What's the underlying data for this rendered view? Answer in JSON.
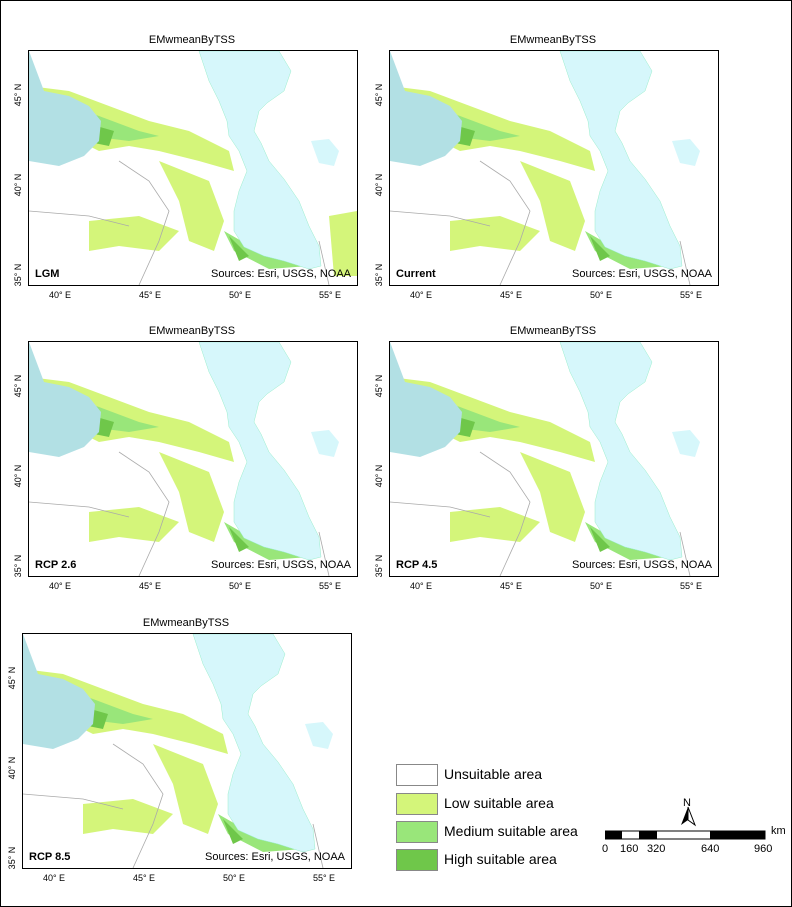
{
  "panels": [
    {
      "title": "EMwmeanByTSS",
      "scenario": "LGM",
      "source": "Sources: Esri, USGS, NOAA"
    },
    {
      "title": "EMwmeanByTSS",
      "scenario": "Current",
      "source": "Sources: Esri, USGS, NOAA"
    },
    {
      "title": "EMwmeanByTSS",
      "scenario": "RCP 2.6",
      "source": "Sources: Esri, USGS, NOAA"
    },
    {
      "title": "EMwmeanByTSS",
      "scenario": "RCP 4.5",
      "source": "Sources: Esri, USGS, NOAA"
    },
    {
      "title": "EMwmeanByTSS",
      "scenario": "RCP 8.5",
      "source": "Sources: Esri, USGS, NOAA"
    }
  ],
  "x_ticks": [
    "40° E",
    "45° E",
    "50° E",
    "55° E"
  ],
  "y_ticks": [
    "45° N",
    "40° N",
    "35° N"
  ],
  "legend": [
    {
      "label": "Unsuitable area",
      "color": "#ffffff"
    },
    {
      "label": "Low suitable area",
      "color": "#d4f57a"
    },
    {
      "label": "Medium suitable area",
      "color": "#99e67a"
    },
    {
      "label": "High suitable area",
      "color": "#6fc74a"
    }
  ],
  "scale_bar": {
    "unit": "km",
    "labels": [
      "0",
      "160",
      "320",
      "640",
      "960"
    ]
  },
  "north_label": "N",
  "colors": {
    "sea": "#d6f7fb",
    "black_sea": "#b2e0e4",
    "border": "#aaaaaa"
  }
}
